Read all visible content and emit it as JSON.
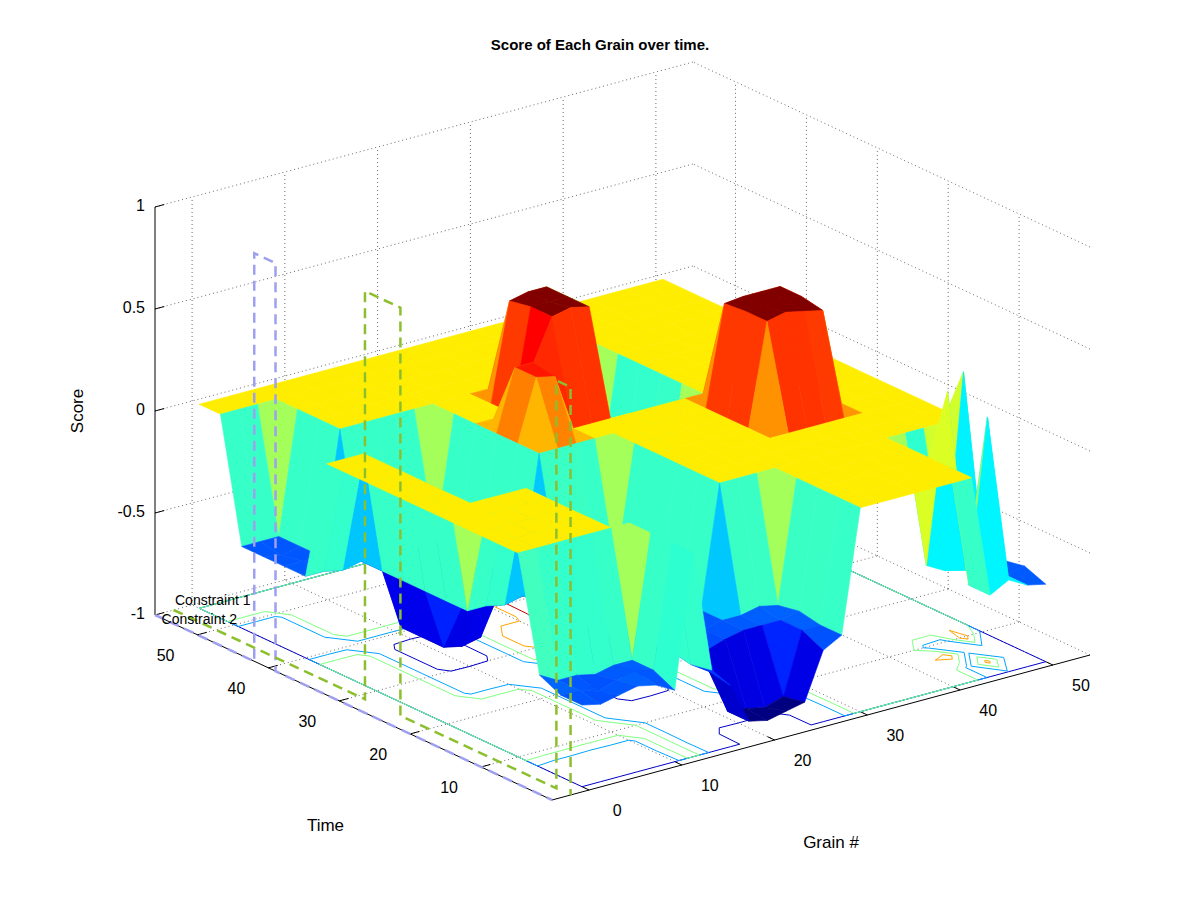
{
  "chart_data": {
    "type": "surface",
    "title": "Score of Each Grain over time.",
    "x_label": "Grain #",
    "y_label": "Time",
    "z_label": "Score",
    "x": [
      0,
      2,
      4,
      6,
      8,
      10,
      12,
      14,
      16,
      18,
      20,
      22,
      24,
      26,
      28,
      30,
      32,
      34,
      36,
      38,
      40,
      42,
      44,
      46,
      48,
      50
    ],
    "y": [
      1,
      4,
      7,
      10,
      13,
      16,
      19,
      22,
      25,
      28,
      31,
      34,
      37,
      40,
      43,
      46,
      49,
      52,
      55
    ],
    "z": [
      [
        -0.6,
        -0.62,
        -0.6,
        -0.58,
        -0.6,
        -0.65,
        0,
        -0.6,
        -0.7,
        -0.9,
        -0.92,
        -0.9,
        -0.88,
        -0.65,
        -0.6,
        0,
        0,
        0,
        0,
        0,
        0,
        0,
        -0.6,
        -0.55,
        -0.6,
        -0.62
      ],
      [
        -0.6,
        -0.6,
        -0.63,
        -0.6,
        -0.58,
        -0.6,
        0,
        -0.62,
        -0.68,
        -0.9,
        -0.91,
        -0.93,
        -0.9,
        -0.6,
        -0.6,
        0,
        0,
        0,
        0,
        0,
        0,
        0,
        -0.6,
        0.2,
        -0.6,
        -0.58
      ],
      [
        -0.55,
        -0.6,
        -0.6,
        -0.62,
        -0.6,
        -0.6,
        0,
        -0.6,
        -0.6,
        -0.65,
        -0.62,
        -0.6,
        -0.6,
        -0.6,
        -0.58,
        0,
        0,
        0,
        0,
        0,
        0,
        0,
        0.3,
        -0.6,
        -0.62,
        -0.6
      ],
      [
        0,
        0,
        0,
        0,
        0,
        0,
        0,
        -0.6,
        -0.6,
        -0.6,
        -0.62,
        -0.6,
        -0.6,
        -0.58,
        -0.6,
        0,
        0,
        0,
        0,
        0,
        0,
        0,
        -0.6,
        -0.65,
        0.3,
        -0.6
      ],
      [
        0,
        0,
        0,
        0,
        0,
        0,
        -0.6,
        -0.6,
        -0.62,
        -0.6,
        -0.6,
        -0.6,
        0,
        0,
        0,
        0,
        0,
        0,
        0,
        0,
        0,
        0,
        0,
        0,
        0,
        0
      ],
      [
        0,
        0,
        0,
        0,
        0,
        0,
        -0.6,
        -0.62,
        -0.9,
        -0.92,
        -0.9,
        -0.6,
        0,
        0,
        0,
        0,
        0,
        0,
        0,
        0,
        0,
        0,
        0,
        0,
        0,
        0
      ],
      [
        0,
        0,
        0,
        0,
        0,
        0,
        -0.6,
        -0.6,
        -0.91,
        -0.93,
        -0.9,
        -0.6,
        0,
        0,
        0,
        0,
        0,
        0,
        0,
        0,
        0,
        0,
        0,
        0,
        0,
        0
      ],
      [
        0,
        0,
        0,
        0,
        0,
        0,
        -0.6,
        -0.6,
        -0.9,
        -0.9,
        -0.88,
        -0.6,
        0,
        0,
        0,
        0,
        0,
        0,
        0.5,
        0.52,
        0.5,
        0.48,
        0,
        0,
        0,
        0
      ],
      [
        0,
        0,
        0,
        -0.6,
        -0.6,
        -0.62,
        -0.6,
        -0.6,
        -0.6,
        -0.58,
        -0.6,
        -0.6,
        0,
        0,
        0,
        0,
        0,
        0,
        0.5,
        0.5,
        0.52,
        0.5,
        0,
        0,
        0,
        0
      ],
      [
        0,
        0,
        0,
        -0.6,
        -0.62,
        -0.6,
        -0.6,
        -0.6,
        0,
        0,
        0,
        0,
        0,
        0,
        0,
        0,
        0,
        0,
        0.49,
        0.5,
        0.5,
        0.5,
        0,
        0,
        0,
        0
      ],
      [
        0,
        0,
        0,
        -0.6,
        -0.9,
        -0.92,
        -0.9,
        -0.6,
        0,
        0.3,
        0.28,
        0,
        0,
        0,
        0,
        0,
        0,
        0,
        0,
        0,
        0,
        0,
        0,
        0,
        0,
        0
      ],
      [
        0,
        0,
        0,
        -0.6,
        -0.9,
        -0.9,
        -0.91,
        -0.6,
        0,
        0.3,
        0.3,
        0.5,
        0.52,
        0.5,
        -0.6,
        -0.62,
        -0.6,
        -0.6,
        0,
        0,
        0,
        0,
        0,
        0,
        0,
        0
      ],
      [
        0,
        0,
        0,
        -0.6,
        -0.9,
        -0.93,
        -0.9,
        -0.6,
        0,
        0,
        0,
        0.5,
        0.5,
        0.5,
        -0.6,
        -0.6,
        -0.58,
        -0.6,
        0,
        0,
        0,
        0,
        0,
        0,
        0,
        0
      ],
      [
        -0.6,
        -0.6,
        -0.62,
        -0.6,
        -0.6,
        -0.6,
        -0.6,
        -0.6,
        0,
        0,
        0,
        0.48,
        0.5,
        0.5,
        -0.6,
        -0.6,
        -0.6,
        -0.62,
        0,
        0,
        0,
        0,
        0,
        0,
        0,
        0
      ],
      [
        -0.6,
        -0.6,
        -0.6,
        0,
        0,
        0,
        0,
        0,
        0,
        0,
        0,
        0,
        0,
        0,
        -0.6,
        -0.6,
        -0.6,
        -0.6,
        0,
        0,
        0,
        0,
        0,
        0,
        0,
        0
      ],
      [
        -0.6,
        -0.62,
        -0.6,
        0,
        0,
        0,
        0,
        0,
        0,
        0,
        0,
        0,
        0,
        0,
        0,
        0,
        0,
        0,
        0,
        0,
        0,
        0,
        0,
        0,
        0,
        0
      ],
      [
        -0.6,
        -0.6,
        -0.6,
        0,
        0,
        0,
        0,
        0,
        0,
        0,
        0,
        0,
        0,
        0,
        0,
        0,
        0,
        0,
        0,
        0,
        0,
        0,
        0,
        0,
        0,
        0
      ],
      [
        0,
        0,
        0,
        0,
        0,
        0,
        0,
        0,
        0,
        0,
        0,
        0,
        0,
        0,
        0,
        0,
        0,
        0,
        0,
        0,
        0,
        0,
        0,
        0,
        0,
        0
      ],
      [
        0,
        0,
        0,
        0,
        0,
        0,
        0,
        0,
        0,
        0,
        0,
        0,
        0,
        0,
        0,
        0,
        0,
        0,
        0,
        0,
        0,
        0,
        0,
        0,
        0,
        0
      ]
    ],
    "xlim": [
      -4,
      54
    ],
    "ylim": [
      0,
      56
    ],
    "zlim": [
      -1,
      1
    ],
    "xticks": [
      0,
      10,
      20,
      30,
      40,
      50
    ],
    "yticks": [
      10,
      20,
      30,
      40,
      50
    ],
    "zticks": [
      -1,
      -0.5,
      0,
      0.5,
      1
    ],
    "grid": true,
    "color_range": [
      -0.9,
      0.5
    ],
    "contour_levels": [
      -0.8,
      -0.5,
      -0.2,
      0.1,
      0.4
    ],
    "series": [
      {
        "name": "Constraint 1",
        "color": "#9f9ff0",
        "line_style": "dashed",
        "x": [
          -4,
          -4,
          -4,
          -4,
          -4,
          -4
        ],
        "y": [
          56,
          42,
          42,
          39,
          39,
          0
        ],
        "z": [
          -1,
          -1,
          1,
          1,
          -1,
          -1
        ]
      },
      {
        "name": "Constraint 2",
        "color": "#8cbf2e",
        "line_style": "dashed",
        "x": [
          -2,
          -2,
          -2,
          -2,
          -2,
          -2,
          -2,
          -2,
          -2
        ],
        "y": [
          56,
          29,
          29,
          24,
          24,
          2,
          2,
          0,
          0
        ],
        "z": [
          -1,
          -1,
          1,
          1,
          -1,
          -1,
          1,
          1,
          -1
        ]
      }
    ]
  }
}
